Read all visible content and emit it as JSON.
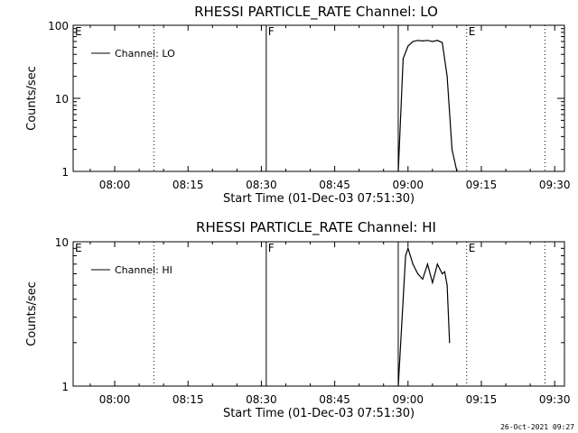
{
  "footer_stamp": "26-Oct-2021 09:27",
  "chart_data": [
    {
      "type": "line",
      "title": "RHESSI PARTICLE_RATE Channel: LO",
      "xlabel": "Start Time (01-Dec-03 07:51:30)",
      "ylabel": "Counts/sec",
      "y_scale": "log",
      "ylim": [
        1,
        100
      ],
      "yticks": [
        1,
        10,
        100
      ],
      "ytick_labels": [
        "1",
        "10",
        "100"
      ],
      "xlim": [
        "07:51:30",
        "09:32:00"
      ],
      "xticks": [
        "08:00",
        "08:15",
        "08:30",
        "08:45",
        "09:00",
        "09:15",
        "09:30"
      ],
      "legend": {
        "label": "Channel: LO",
        "position": "top-left"
      },
      "markers": [
        {
          "label": "E",
          "time": "07:51:30",
          "style": "none"
        },
        {
          "label": "",
          "time": "08:08:00",
          "style": "dotted"
        },
        {
          "label": "F",
          "time": "08:31:00",
          "style": "solid"
        },
        {
          "label": "",
          "time": "08:58:00",
          "style": "solid"
        },
        {
          "label": "E",
          "time": "09:12:00",
          "style": "dotted"
        },
        {
          "label": "",
          "time": "09:28:00",
          "style": "dotted"
        }
      ],
      "series": [
        {
          "name": "Channel: LO",
          "x": [
            "08:58:00",
            "08:59:00",
            "09:00:00",
            "09:01:00",
            "09:02:00",
            "09:03:00",
            "09:04:00",
            "09:05:00",
            "09:06:00",
            "09:07:00",
            "09:08:00",
            "09:09:00",
            "09:10:00"
          ],
          "y": [
            1,
            35,
            52,
            60,
            62,
            61,
            62,
            60,
            62,
            58,
            20,
            2,
            1
          ]
        }
      ]
    },
    {
      "type": "line",
      "title": "RHESSI PARTICLE_RATE Channel: HI",
      "xlabel": "Start Time (01-Dec-03 07:51:30)",
      "ylabel": "Counts/sec",
      "y_scale": "log",
      "ylim": [
        1,
        10
      ],
      "yticks": [
        1,
        10
      ],
      "ytick_labels": [
        "1",
        "10"
      ],
      "xlim": [
        "07:51:30",
        "09:32:00"
      ],
      "xticks": [
        "08:00",
        "08:15",
        "08:30",
        "08:45",
        "09:00",
        "09:15",
        "09:30"
      ],
      "legend": {
        "label": "Channel: HI",
        "position": "top-left"
      },
      "markers": [
        {
          "label": "E",
          "time": "07:51:30",
          "style": "none"
        },
        {
          "label": "",
          "time": "08:08:00",
          "style": "dotted"
        },
        {
          "label": "F",
          "time": "08:31:00",
          "style": "solid"
        },
        {
          "label": "",
          "time": "08:58:00",
          "style": "solid"
        },
        {
          "label": "E",
          "time": "09:12:00",
          "style": "dotted"
        },
        {
          "label": "",
          "time": "09:28:00",
          "style": "dotted"
        }
      ],
      "series": [
        {
          "name": "Channel: HI",
          "x": [
            "08:58:00",
            "08:59:00",
            "08:59:30",
            "09:00:00",
            "09:01:00",
            "09:02:00",
            "09:03:00",
            "09:04:00",
            "09:05:00",
            "09:06:00",
            "09:07:00",
            "09:07:30",
            "09:08:00",
            "09:08:30"
          ],
          "y": [
            1,
            4,
            8,
            9,
            7,
            6,
            5.5,
            7,
            5.2,
            7,
            6,
            6.2,
            5,
            2
          ]
        }
      ]
    }
  ]
}
